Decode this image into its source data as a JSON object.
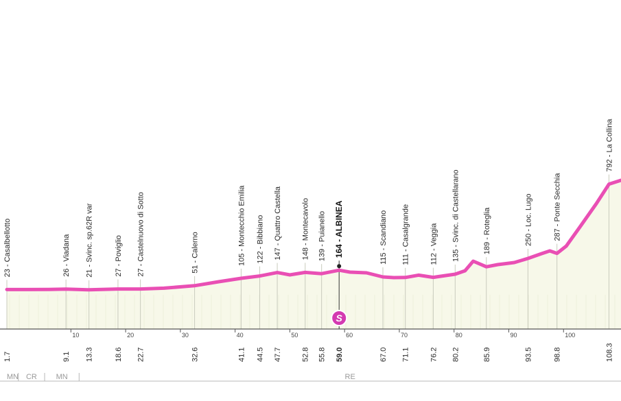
{
  "colors": {
    "profile_line": "#e94fb4",
    "fill": "#f7f8e9",
    "vline": "#c9cbbd",
    "marker_line": "#333333",
    "start_badge": "#d43ab1",
    "province_line": "#b8b8b8"
  },
  "icons": {
    "start": "start-badge-icon"
  },
  "start_badge_letter": "S",
  "chart_data": {
    "type": "area",
    "title": "",
    "xlabel": "",
    "ylabel": "",
    "x_axis_km_range": [
      -1.7,
      110.5
    ],
    "y_elevation_range": [
      0,
      1000
    ],
    "axis_ticks": [
      10,
      20,
      30,
      40,
      50,
      60,
      70,
      80,
      90,
      100
    ],
    "profile": [
      {
        "km": -1.7,
        "elev": 23
      },
      {
        "km": 2,
        "elev": 23
      },
      {
        "km": 6,
        "elev": 24
      },
      {
        "km": 9.1,
        "elev": 26
      },
      {
        "km": 13.3,
        "elev": 21
      },
      {
        "km": 18.6,
        "elev": 27
      },
      {
        "km": 22.7,
        "elev": 27
      },
      {
        "km": 27,
        "elev": 33
      },
      {
        "km": 32.6,
        "elev": 51
      },
      {
        "km": 37,
        "elev": 80
      },
      {
        "km": 41.1,
        "elev": 105
      },
      {
        "km": 44.5,
        "elev": 122
      },
      {
        "km": 47.7,
        "elev": 147
      },
      {
        "km": 50,
        "elev": 130
      },
      {
        "km": 52.8,
        "elev": 148
      },
      {
        "km": 55.8,
        "elev": 139
      },
      {
        "km": 59.0,
        "elev": 164
      },
      {
        "km": 61,
        "elev": 150
      },
      {
        "km": 64,
        "elev": 145
      },
      {
        "km": 67.0,
        "elev": 115
      },
      {
        "km": 69,
        "elev": 110
      },
      {
        "km": 71.1,
        "elev": 111
      },
      {
        "km": 73.5,
        "elev": 128
      },
      {
        "km": 76.2,
        "elev": 112
      },
      {
        "km": 80.2,
        "elev": 135
      },
      {
        "km": 82,
        "elev": 160
      },
      {
        "km": 83.5,
        "elev": 230
      },
      {
        "km": 85.9,
        "elev": 189
      },
      {
        "km": 88,
        "elev": 205
      },
      {
        "km": 91,
        "elev": 220
      },
      {
        "km": 93.5,
        "elev": 250
      },
      {
        "km": 96,
        "elev": 285
      },
      {
        "km": 97.5,
        "elev": 305
      },
      {
        "km": 98.8,
        "elev": 287
      },
      {
        "km": 100.5,
        "elev": 340
      },
      {
        "km": 103,
        "elev": 480
      },
      {
        "km": 106,
        "elev": 650
      },
      {
        "km": 108.3,
        "elev": 792
      },
      {
        "km": 110.5,
        "elev": 820
      }
    ],
    "points": [
      {
        "km": -1.7,
        "dist": "1.7",
        "elev": 23,
        "label": "23 - Casalbellotto"
      },
      {
        "km": 9.1,
        "dist": "9.1",
        "elev": 26,
        "label": "26 - Viadana"
      },
      {
        "km": 13.3,
        "dist": "13.3",
        "elev": 21,
        "label": "21 - Svinc. sp.62R var"
      },
      {
        "km": 18.6,
        "dist": "18.6",
        "elev": 27,
        "label": "27 - Poviglio"
      },
      {
        "km": 22.7,
        "dist": "22.7",
        "elev": 27,
        "label": "27 - Castelnuovo di Sotto"
      },
      {
        "km": 32.6,
        "dist": "32.6",
        "elev": 51,
        "label": "51 - Calerno"
      },
      {
        "km": 41.1,
        "dist": "41.1",
        "elev": 105,
        "label": "105 - Montecchio Emilia"
      },
      {
        "km": 44.5,
        "dist": "44.5",
        "elev": 122,
        "label": "122 - Bibbiano"
      },
      {
        "km": 47.7,
        "dist": "47.7",
        "elev": 147,
        "label": "147 - Quattro Castella"
      },
      {
        "km": 52.8,
        "dist": "52.8",
        "elev": 148,
        "label": "148 - Montecavolo"
      },
      {
        "km": 55.8,
        "dist": "55.8",
        "elev": 139,
        "label": "139 - Puianello"
      },
      {
        "km": 59.0,
        "dist": "59.0",
        "elev": 164,
        "label": "164 - ALBINEA",
        "bold": true,
        "start": true
      },
      {
        "km": 67.0,
        "dist": "67.0",
        "elev": 115,
        "label": "115 - Scandiano"
      },
      {
        "km": 71.1,
        "dist": "71.1",
        "elev": 111,
        "label": "111 - Casalgrande"
      },
      {
        "km": 76.2,
        "dist": "76.2",
        "elev": 112,
        "label": "112 - Veggia"
      },
      {
        "km": 80.2,
        "dist": "80.2",
        "elev": 135,
        "label": "135 - Svinc. di Castellarano"
      },
      {
        "km": 85.9,
        "dist": "85.9",
        "elev": 189,
        "label": "189 - Roteglia"
      },
      {
        "km": 93.5,
        "dist": "93.5",
        "elev": 250,
        "label": "250 - Loc. Lugo"
      },
      {
        "km": 98.8,
        "dist": "98.8",
        "elev": 287,
        "label": "287 - Ponte Secchia"
      },
      {
        "km": 108.3,
        "dist": "108.3",
        "elev": 792,
        "label": "792 - La Collina"
      }
    ],
    "provinces": [
      {
        "code": "MN",
        "from_km": -1.7,
        "to_km": 0.4
      },
      {
        "code": "CR",
        "from_km": 0.4,
        "to_km": 5.2
      },
      {
        "code": "MN",
        "from_km": 5.2,
        "to_km": 11.5
      },
      {
        "code": "RE",
        "from_km": 11.5,
        "to_km": 110.5
      }
    ]
  }
}
